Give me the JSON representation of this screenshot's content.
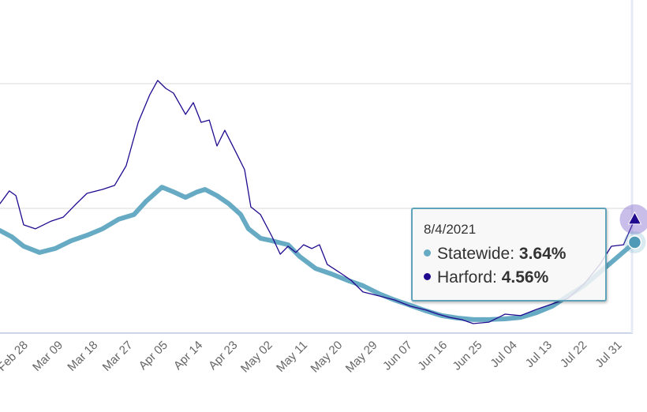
{
  "chart_data": {
    "type": "line",
    "title": "",
    "xlabel": "",
    "ylabel": "",
    "x_units": "days since Feb 28, 2021",
    "ylim": [
      0,
      13
    ],
    "y_gridlines": [
      5,
      10
    ],
    "grid": true,
    "x_ticks": [
      {
        "day": 0,
        "label": "Feb 28"
      },
      {
        "day": 9,
        "label": "Mar 09"
      },
      {
        "day": 18,
        "label": "Mar 18"
      },
      {
        "day": 27,
        "label": "Mar 27"
      },
      {
        "day": 36,
        "label": "Apr 05"
      },
      {
        "day": 45,
        "label": "Apr 14"
      },
      {
        "day": 54,
        "label": "Apr 23"
      },
      {
        "day": 63,
        "label": "May 02"
      },
      {
        "day": 72,
        "label": "May 11"
      },
      {
        "day": 81,
        "label": "May 20"
      },
      {
        "day": 90,
        "label": "May 29"
      },
      {
        "day": 99,
        "label": "Jun 07"
      },
      {
        "day": 108,
        "label": "Jun 16"
      },
      {
        "day": 117,
        "label": "Jun 25"
      },
      {
        "day": 126,
        "label": "Jul 04"
      },
      {
        "day": 135,
        "label": "Jul 13"
      },
      {
        "day": 144,
        "label": "Jul 22"
      },
      {
        "day": 153,
        "label": "Jul 31"
      }
    ],
    "series": [
      {
        "name": "Statewide",
        "color": "#67aac4",
        "marker": "circle",
        "points": [
          [
            -6.5,
            4.11
          ],
          [
            -3.5,
            3.86
          ],
          [
            -0.4,
            3.48
          ],
          [
            3.7,
            3.23
          ],
          [
            7.7,
            3.39
          ],
          [
            11.8,
            3.7
          ],
          [
            15.9,
            3.92
          ],
          [
            19.9,
            4.18
          ],
          [
            24,
            4.56
          ],
          [
            28,
            4.75
          ],
          [
            31.1,
            5.28
          ],
          [
            35.2,
            5.85
          ],
          [
            38.2,
            5.66
          ],
          [
            41.3,
            5.44
          ],
          [
            44.3,
            5.66
          ],
          [
            46.3,
            5.76
          ],
          [
            49.4,
            5.51
          ],
          [
            52.4,
            5.19
          ],
          [
            55.5,
            4.75
          ],
          [
            57.5,
            4.18
          ],
          [
            60.6,
            3.8
          ],
          [
            63.6,
            3.7
          ],
          [
            67.7,
            3.54
          ],
          [
            70.7,
            3.07
          ],
          [
            74.8,
            2.59
          ],
          [
            78.9,
            2.37
          ],
          [
            82.9,
            2.12
          ],
          [
            87,
            1.9
          ],
          [
            91.1,
            1.58
          ],
          [
            95.1,
            1.33
          ],
          [
            99.2,
            1.11
          ],
          [
            103.3,
            0.89
          ],
          [
            107.3,
            0.7
          ],
          [
            111.4,
            0.6
          ],
          [
            115.4,
            0.54
          ],
          [
            119.5,
            0.54
          ],
          [
            123.6,
            0.57
          ],
          [
            127.6,
            0.63
          ],
          [
            131.7,
            0.82
          ],
          [
            135.8,
            1.08
          ],
          [
            139.8,
            1.49
          ],
          [
            143.9,
            1.9
          ],
          [
            148,
            2.44
          ],
          [
            152,
            2.97
          ],
          [
            157,
            3.64
          ]
        ]
      },
      {
        "name": "Harford",
        "color": "#21098f",
        "marker": "triangle",
        "points": [
          [
            -6.5,
            5.19
          ],
          [
            -4.1,
            5.7
          ],
          [
            -2.4,
            5.51
          ],
          [
            -0.4,
            4.34
          ],
          [
            2.6,
            4.18
          ],
          [
            4.7,
            4.34
          ],
          [
            6.7,
            4.49
          ],
          [
            9.8,
            4.65
          ],
          [
            12.8,
            5.13
          ],
          [
            15.9,
            5.6
          ],
          [
            19.9,
            5.76
          ],
          [
            23,
            5.92
          ],
          [
            26,
            6.71
          ],
          [
            29.1,
            8.45
          ],
          [
            32.1,
            9.56
          ],
          [
            34.1,
            10.13
          ],
          [
            36.2,
            9.81
          ],
          [
            38.2,
            9.62
          ],
          [
            41.3,
            8.77
          ],
          [
            43.3,
            9.24
          ],
          [
            45.3,
            8.45
          ],
          [
            47.4,
            8.54
          ],
          [
            49.4,
            7.5
          ],
          [
            51.4,
            8.13
          ],
          [
            54.5,
            7.18
          ],
          [
            56.5,
            6.55
          ],
          [
            58.1,
            5.06
          ],
          [
            60.6,
            4.75
          ],
          [
            63.6,
            3.86
          ],
          [
            65.7,
            3.16
          ],
          [
            67.7,
            3.48
          ],
          [
            69.7,
            3.23
          ],
          [
            71.7,
            3.54
          ],
          [
            73.8,
            3.39
          ],
          [
            75.8,
            3.54
          ],
          [
            77.8,
            2.75
          ],
          [
            80.9,
            2.44
          ],
          [
            83.9,
            2.12
          ],
          [
            87,
            1.65
          ],
          [
            91.1,
            1.49
          ],
          [
            95.1,
            1.33
          ],
          [
            99.2,
            1.08
          ],
          [
            103.3,
            0.92
          ],
          [
            106.3,
            0.76
          ],
          [
            109.3,
            0.63
          ],
          [
            112.4,
            0.54
          ],
          [
            115.4,
            0.38
          ],
          [
            119.5,
            0.44
          ],
          [
            123.6,
            0.76
          ],
          [
            127.6,
            0.7
          ],
          [
            131.7,
            0.95
          ],
          [
            135.8,
            1.17
          ],
          [
            139.8,
            1.39
          ],
          [
            143.9,
            1.96
          ],
          [
            148,
            2.75
          ],
          [
            151,
            3.48
          ],
          [
            154.1,
            3.54
          ],
          [
            157,
            4.56
          ]
        ]
      }
    ]
  },
  "tooltip": {
    "date": "8/4/2021",
    "rows": [
      {
        "label": "Statewide: ",
        "value": "3.64%",
        "color": "#67aac4"
      },
      {
        "label": "Harford: ",
        "value": "4.56%",
        "color": "#21098f"
      }
    ]
  }
}
